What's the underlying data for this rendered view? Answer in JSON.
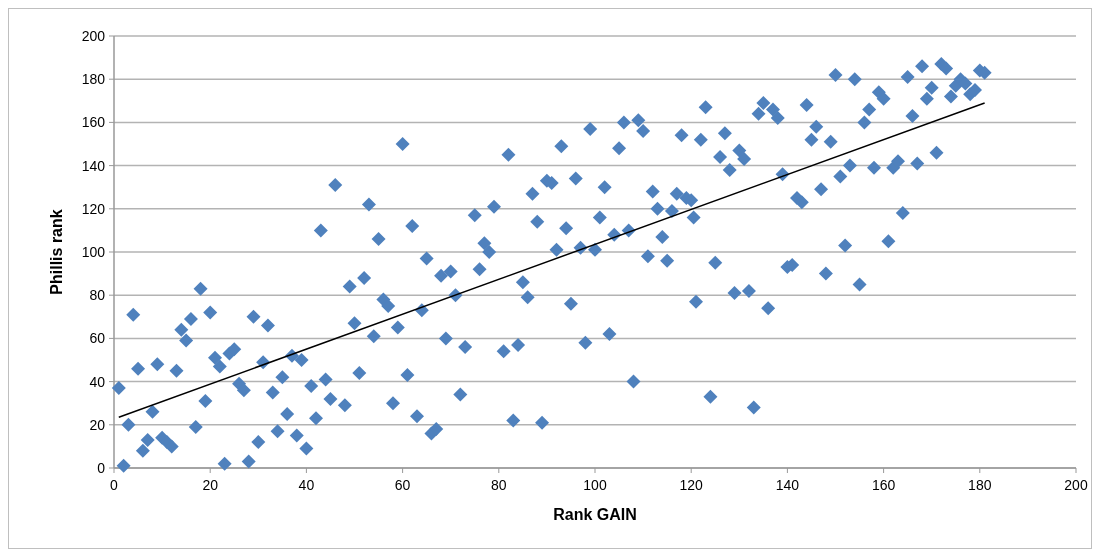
{
  "chart_data": {
    "type": "scatter",
    "xlabel": "Rank GAIN",
    "ylabel": "Phillis rank",
    "xlim": [
      0,
      200
    ],
    "xticks": [
      0,
      20,
      40,
      60,
      80,
      100,
      120,
      140,
      160,
      180,
      200
    ],
    "ylim": [
      0,
      200
    ],
    "yticks": [
      0,
      20,
      40,
      60,
      80,
      100,
      120,
      140,
      160,
      180,
      200
    ],
    "grid": "y",
    "marker": "diamond",
    "series": [
      {
        "color": "#4f81bd",
        "x": [
          1,
          2,
          3,
          4,
          5,
          6,
          7,
          8,
          9,
          10,
          11,
          12,
          13,
          14,
          15,
          16,
          17,
          18,
          19,
          20,
          21,
          22,
          23,
          24,
          25,
          26,
          27,
          28,
          29,
          30,
          31,
          32,
          33,
          34,
          35,
          36,
          37,
          38,
          39,
          40,
          41,
          42,
          43,
          44,
          45,
          46,
          48,
          49,
          50,
          51,
          52,
          53,
          54,
          55,
          56,
          57,
          58,
          59,
          60,
          61,
          62,
          63,
          64,
          65,
          66,
          67,
          68,
          69,
          70,
          71,
          72,
          73,
          75,
          76,
          77,
          78,
          79,
          81,
          82,
          83,
          84,
          85,
          86,
          87,
          88,
          89,
          90,
          91,
          92,
          93,
          94,
          95,
          96,
          97,
          98,
          99,
          100,
          101,
          102,
          103,
          104,
          105,
          106,
          107,
          108,
          109,
          110,
          111,
          112,
          113,
          114,
          115,
          116,
          117,
          118,
          119,
          120,
          120.5,
          121,
          122,
          123,
          124,
          125,
          126,
          127,
          128,
          129,
          130,
          131,
          132,
          133,
          134,
          135,
          136,
          137,
          138,
          139,
          140,
          141,
          142,
          143,
          144,
          145,
          146,
          147,
          148,
          149,
          150,
          151,
          152,
          153,
          154,
          155,
          156,
          157,
          158,
          159,
          160,
          161,
          162,
          163,
          164,
          165,
          166,
          167,
          168,
          169,
          170,
          171,
          172,
          173,
          174,
          175,
          176,
          177,
          178,
          179,
          180,
          181
        ],
        "values": [
          37,
          1,
          20,
          71,
          46,
          8,
          13,
          26,
          48,
          14,
          12,
          10,
          45,
          64,
          59,
          69,
          19,
          83,
          31,
          72,
          51,
          47,
          2,
          53,
          55,
          39,
          36,
          3,
          70,
          12,
          49,
          66,
          35,
          17,
          42,
          25,
          52,
          15,
          50,
          9,
          38,
          23,
          110,
          41,
          32,
          131,
          29,
          84,
          67,
          44,
          88,
          122,
          61,
          106,
          78,
          75,
          30,
          65,
          150,
          43,
          112,
          24,
          73,
          97,
          16,
          18,
          89,
          60,
          91,
          80,
          34,
          56,
          117,
          92,
          104,
          100,
          121,
          54,
          145,
          22,
          57,
          86,
          79,
          127,
          114,
          21,
          133,
          132,
          101,
          149,
          111,
          76,
          134,
          102,
          58,
          157,
          101,
          116,
          130,
          62,
          108,
          148,
          160,
          110,
          40,
          161,
          156,
          98,
          128,
          120,
          107,
          96,
          119,
          127,
          154,
          125,
          124,
          116,
          77,
          152,
          167,
          33,
          95,
          144,
          155,
          138,
          81,
          147,
          143,
          82,
          28,
          164,
          169,
          74,
          166,
          162,
          136,
          93,
          94,
          125,
          123,
          168,
          152,
          158,
          129,
          90,
          151,
          182,
          135,
          103,
          140,
          180,
          85,
          160,
          166,
          139,
          174,
          171,
          105,
          139,
          142,
          118,
          181,
          163,
          141,
          186,
          171,
          176,
          146,
          187,
          185,
          172,
          177,
          180,
          178,
          173,
          175,
          184,
          183
        ]
      },
      {
        "type": "line",
        "color": "#000000",
        "x": [
          1,
          181
        ],
        "values": [
          23.5,
          169
        ],
        "marker": "none"
      }
    ]
  }
}
